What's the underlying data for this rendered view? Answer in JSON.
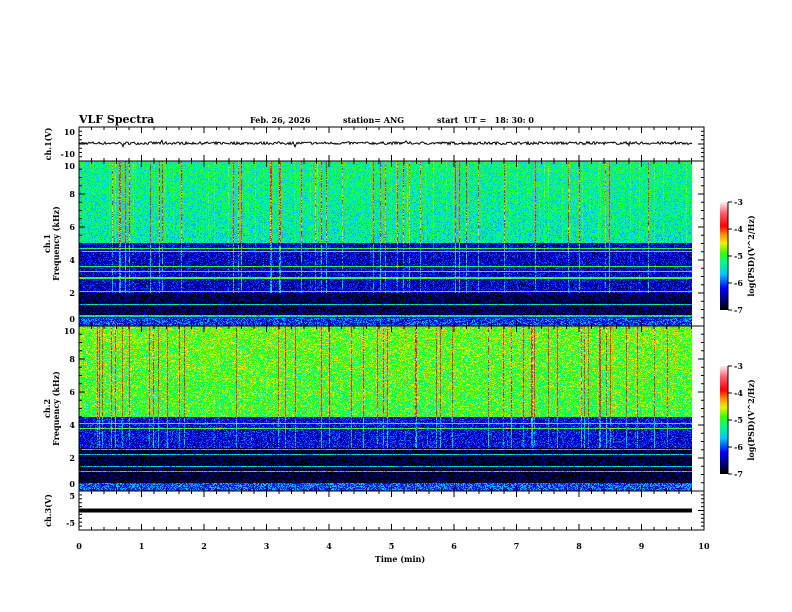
{
  "header": {
    "title": "VLF Spectra",
    "date": "Feb. 26, 2026",
    "station": "station= ANG",
    "start": "start  UT =   18: 30: 0"
  },
  "chart_data": [
    {
      "type": "line",
      "panel": "ch1-waveform",
      "ylabel": "ch.1(V)",
      "ylim": [
        -10,
        10
      ],
      "yticks": [
        "10",
        "-10"
      ],
      "series_description_level": 0.5,
      "xlim": [
        0,
        10
      ]
    },
    {
      "type": "heatmap",
      "panel": "ch1-spectrogram",
      "ylabel": "ch.1 Frequency (kHz)",
      "ylim": [
        0,
        10
      ],
      "yticks": [
        "0",
        "2",
        "4",
        "6",
        "8",
        "10"
      ],
      "xlim": [
        0,
        10
      ],
      "data_xrange": [
        0,
        9.8
      ],
      "colorbar": {
        "label": "log(PSD)(V^2/Hz)",
        "range": [
          -7,
          -3
        ],
        "ticks": [
          "-3",
          "-4",
          "-5",
          "-6",
          "-7"
        ]
      },
      "seed": 11,
      "upper_level": -5.4,
      "mid_band": [
        2,
        5
      ],
      "mid_level": -6.4,
      "low_level": -6.8,
      "lines_khz": [
        4.7,
        4.5,
        3.6,
        3.3,
        2.9,
        2.1,
        1.3,
        0.6
      ]
    },
    {
      "type": "heatmap",
      "panel": "ch2-spectrogram",
      "ylabel": "ch.2 Frequency (kHz)",
      "ylim": [
        0,
        10
      ],
      "yticks": [
        "0",
        "2",
        "4",
        "6",
        "8",
        "10"
      ],
      "xlim": [
        0,
        10
      ],
      "data_xrange": [
        0,
        9.8
      ],
      "colorbar": {
        "label": "log(PSD)(V^2/Hz)",
        "range": [
          -7,
          -3
        ],
        "ticks": [
          "-3",
          "-4",
          "-5",
          "-6",
          "-7"
        ]
      },
      "seed": 29,
      "upper_level": -5.0,
      "mid_band": [
        2.6,
        4.5
      ],
      "mid_level": -6.3,
      "low_level": -6.9,
      "lines_khz": [
        4.1,
        3.8,
        2.5,
        2.2,
        1.5,
        1.2
      ]
    },
    {
      "type": "line",
      "panel": "ch3-waveform",
      "ylabel": "ch.3(V)",
      "ylim": [
        -5,
        5
      ],
      "yticks": [
        "5",
        "-5"
      ],
      "series_description_level": 0,
      "xlim": [
        0,
        10
      ]
    }
  ],
  "xaxis": {
    "label": "Time (min)",
    "ticks": [
      "0",
      "1",
      "2",
      "3",
      "4",
      "5",
      "6",
      "7",
      "8",
      "9",
      "10"
    ]
  }
}
